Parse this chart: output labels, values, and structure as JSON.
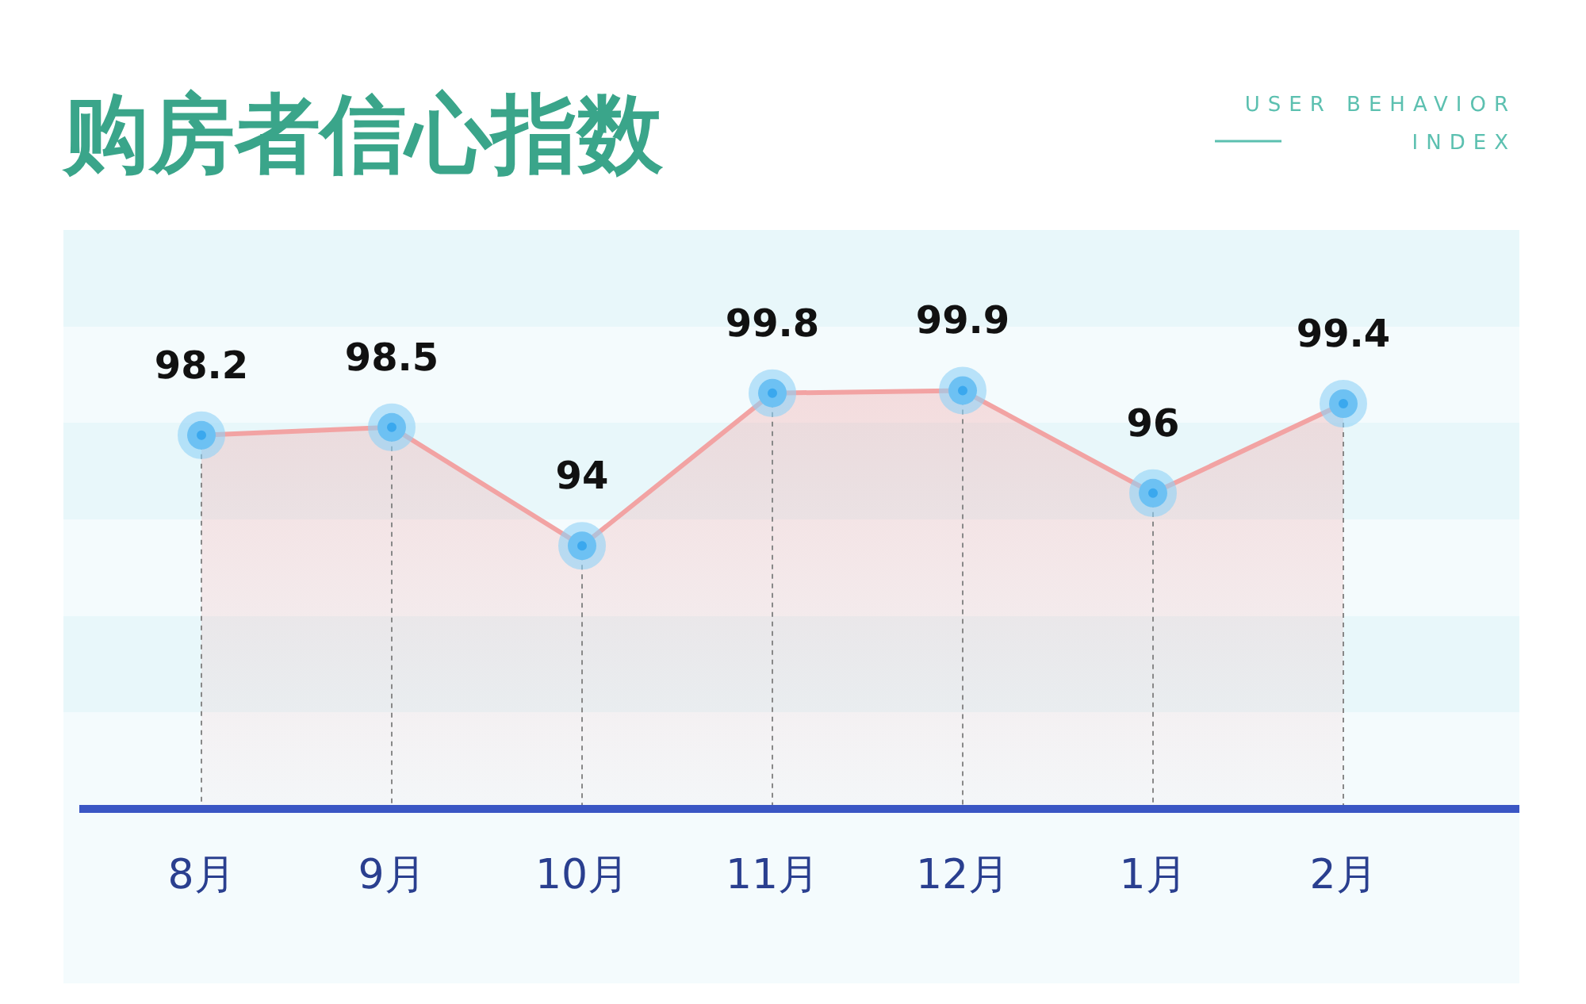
{
  "chart_data": {
    "type": "area",
    "title": "购房者信心指数",
    "subtitle": "USER BEHAVIOR INDEX",
    "categories": [
      "8月",
      "9月",
      "10月",
      "11月",
      "12月",
      "1月",
      "2月"
    ],
    "series": [
      {
        "color": "#f2a3a3",
        "values": [
          98.2,
          98.5,
          94,
          99.8,
          99.9,
          96,
          99.4
        ]
      }
    ],
    "ylim": [
      84,
      106
    ],
    "data_labels": true,
    "marker": "circle"
  }
}
